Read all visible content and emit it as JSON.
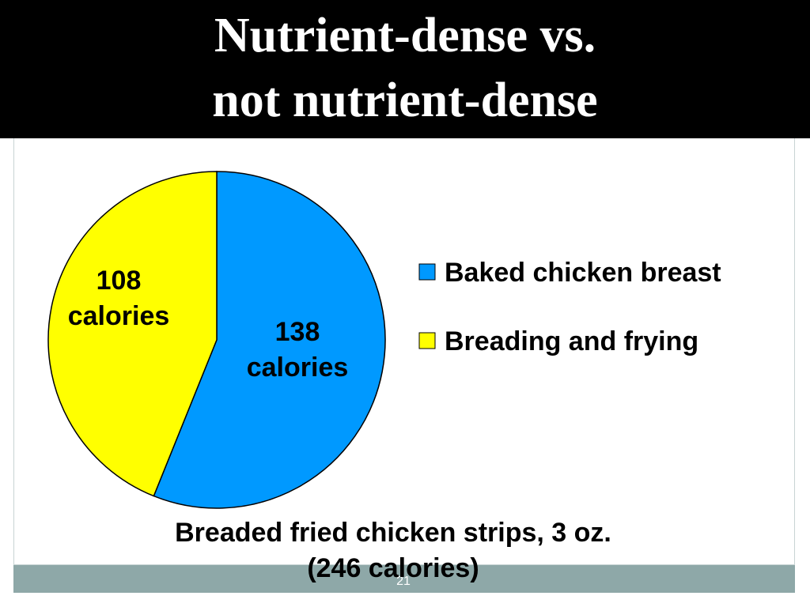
{
  "slide": {
    "title_lines": [
      "Nutrient-dense vs.",
      "not nutrient-dense"
    ],
    "page_number": "21"
  },
  "chart_data": {
    "type": "pie",
    "categories": [
      "Baked chicken breast",
      "Breading and frying"
    ],
    "values": [
      138,
      108
    ],
    "value_labels": [
      "138 calories",
      "108 calories"
    ],
    "colors": [
      "#0099ff",
      "#ffff00"
    ],
    "caption_lines": [
      "Breaded fried chicken strips, 3 oz.",
      "(246 calories)"
    ],
    "legend": "right"
  }
}
